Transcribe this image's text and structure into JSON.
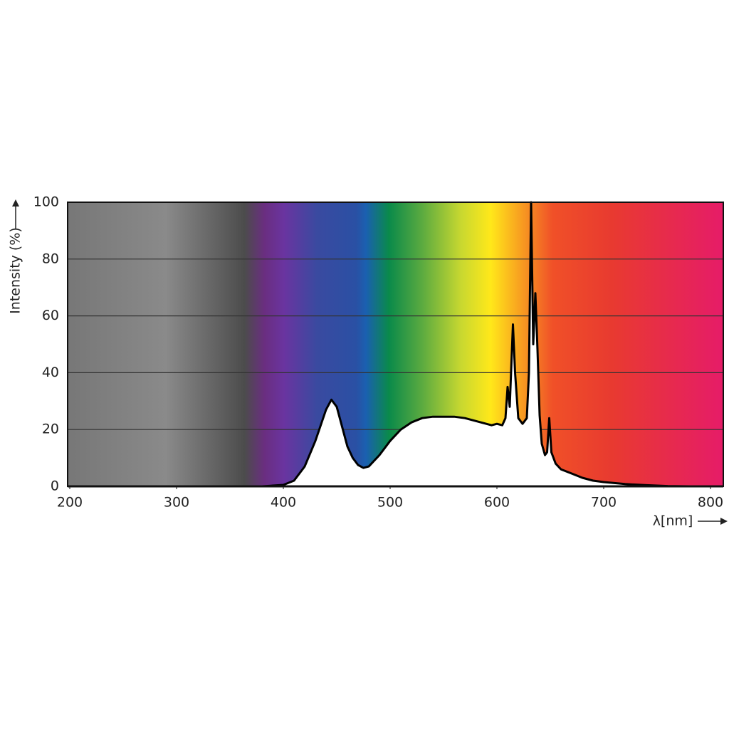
{
  "chart_data": {
    "type": "area",
    "xlabel": "λ[nm]",
    "ylabel": "Intensity (%)",
    "x": [
      380,
      400,
      410,
      420,
      430,
      440,
      445,
      450,
      455,
      460,
      465,
      470,
      475,
      480,
      490,
      500,
      510,
      520,
      530,
      540,
      550,
      560,
      570,
      580,
      590,
      595,
      600,
      605,
      608,
      610,
      612,
      615,
      617,
      620,
      624,
      628,
      630,
      632,
      634,
      636,
      638,
      640,
      642,
      645,
      647,
      649,
      651,
      655,
      660,
      670,
      680,
      690,
      700,
      720,
      740,
      760,
      780
    ],
    "values": [
      0,
      0.5,
      2,
      7,
      16,
      27,
      30.5,
      28,
      21,
      14,
      10,
      7.5,
      6.5,
      7,
      11,
      16,
      20,
      22.5,
      24,
      24.5,
      24.5,
      24.5,
      24,
      23,
      22,
      21.5,
      22,
      21.5,
      24,
      35,
      28,
      57,
      40,
      24,
      22,
      24,
      40,
      100,
      50,
      68,
      48,
      25,
      15,
      11,
      12,
      24,
      12,
      8,
      6,
      4.5,
      3,
      2,
      1.5,
      0.8,
      0.4,
      0.1,
      0
    ],
    "color": "#000000",
    "xlim": [
      198,
      812
    ],
    "ylim": [
      0,
      100
    ],
    "xticks": [
      200,
      300,
      400,
      500,
      600,
      700,
      800
    ],
    "yticks": [
      0,
      20,
      40,
      60,
      80,
      100
    ],
    "grid": true
  }
}
